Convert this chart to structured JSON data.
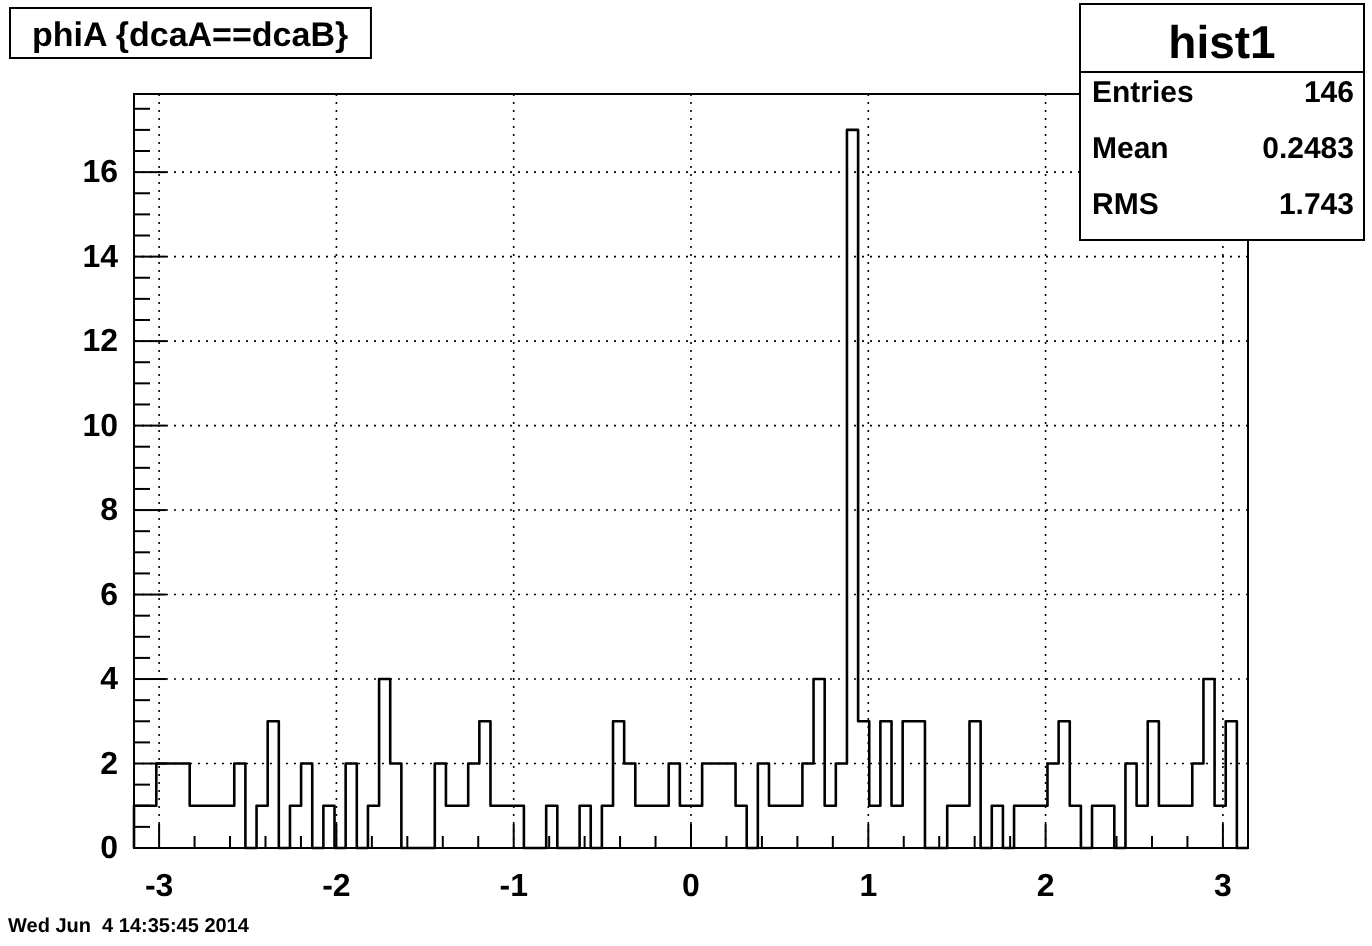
{
  "chart_data": {
    "type": "histogram",
    "title": "phiA {dcaA==dcaB}",
    "bins": [
      -3.1416,
      -3.0788,
      -3.0159,
      -2.9531,
      -2.8903,
      -2.8274,
      -2.7646,
      -2.7018,
      -2.6389,
      -2.5761,
      -2.5133,
      -2.4504,
      -2.3876,
      -2.3248,
      -2.2619,
      -2.1991,
      -2.1363,
      -2.0735,
      -2.0106,
      -1.9478,
      -1.885,
      -1.8221,
      -1.7593,
      -1.6965,
      -1.6336,
      -1.5708,
      -1.508,
      -1.4451,
      -1.3823,
      -1.3195,
      -1.2566,
      -1.1938,
      -1.131,
      -1.0681,
      -1.0053,
      -0.9425,
      -0.8796,
      -0.8168,
      -0.754,
      -0.6912,
      -0.6283,
      -0.5655,
      -0.5027,
      -0.4398,
      -0.377,
      -0.3142,
      -0.2513,
      -0.1885,
      -0.1257,
      -0.0628,
      0,
      0.0628,
      0.1257,
      0.1885,
      0.2513,
      0.3142,
      0.377,
      0.4398,
      0.5027,
      0.5655,
      0.6283,
      0.6912,
      0.754,
      0.8168,
      0.8796,
      0.9425,
      1.0053,
      1.0681,
      1.131,
      1.1938,
      1.2566,
      1.3195,
      1.3823,
      1.4451,
      1.508,
      1.5708,
      1.6336,
      1.6965,
      1.7593,
      1.8221,
      1.885,
      1.9478,
      2.0106,
      2.0735,
      2.1363,
      2.1991,
      2.2619,
      2.3248,
      2.3876,
      2.4504,
      2.5133,
      2.5761,
      2.6389,
      2.7018,
      2.7646,
      2.8274,
      2.8903,
      2.9531,
      3.0159,
      3.0788,
      3.1416
    ],
    "values": [
      1,
      1,
      2,
      2,
      2,
      1,
      1,
      1,
      1,
      2,
      0,
      1,
      3,
      0,
      1,
      2,
      0,
      1,
      0,
      2,
      0,
      1,
      4,
      2,
      0,
      0,
      0,
      2,
      1,
      1,
      2,
      3,
      1,
      1,
      1,
      0,
      0,
      1,
      0,
      0,
      1,
      0,
      1,
      3,
      2,
      1,
      1,
      1,
      2,
      1,
      1,
      2,
      2,
      2,
      1,
      0,
      2,
      1,
      1,
      1,
      2,
      4,
      1,
      2,
      17,
      3,
      1,
      3,
      1,
      3,
      3,
      0,
      0,
      1,
      1,
      3,
      0,
      1,
      0,
      1,
      1,
      1,
      2,
      3,
      1,
      0,
      1,
      1,
      0,
      2,
      1,
      3,
      1,
      1,
      1,
      2,
      4,
      1,
      3,
      0
    ],
    "color": "#000000",
    "xlim": [
      -3.1416,
      3.1416
    ],
    "xticks": [
      -3,
      {
        "value": -2.8,
        "label": null
      },
      {
        "value": -2.6,
        "label": null
      },
      {
        "value": -2.4,
        "label": null
      },
      {
        "value": -2.2,
        "label": null
      },
      -2,
      {
        "value": -1.8,
        "label": null
      },
      {
        "value": -1.6,
        "label": null
      },
      {
        "value": -1.4,
        "label": null
      },
      {
        "value": -1.2,
        "label": null
      },
      -1,
      {
        "value": -0.8,
        "label": null
      },
      {
        "value": -0.6,
        "label": null
      },
      {
        "value": -0.4,
        "label": null
      },
      {
        "value": -0.2,
        "label": null
      },
      0,
      {
        "value": 0.2,
        "label": null
      },
      {
        "value": 0.4,
        "label": null
      },
      {
        "value": 0.6,
        "label": null
      },
      {
        "value": 0.8,
        "label": null
      },
      1,
      {
        "value": 1.2,
        "label": null
      },
      {
        "value": 1.4,
        "label": null
      },
      {
        "value": 1.6,
        "label": null
      },
      {
        "value": 1.8,
        "label": null
      },
      2,
      {
        "value": 2.2,
        "label": null
      },
      {
        "value": 2.4,
        "label": null
      },
      {
        "value": 2.6,
        "label": null
      },
      {
        "value": 2.8,
        "label": null
      },
      3
    ],
    "ylim": [
      0,
      17.85
    ],
    "yticks": [
      0,
      {
        "value": 0.5,
        "label": null
      },
      {
        "value": 1,
        "label": null
      },
      {
        "value": 1.5,
        "label": null
      },
      2,
      {
        "value": 2.5,
        "label": null
      },
      {
        "value": 3,
        "label": null
      },
      {
        "value": 3.5,
        "label": null
      },
      4,
      {
        "value": 4.5,
        "label": null
      },
      {
        "value": 5,
        "label": null
      },
      {
        "value": 5.5,
        "label": null
      },
      6,
      {
        "value": 6.5,
        "label": null
      },
      {
        "value": 7,
        "label": null
      },
      {
        "value": 7.5,
        "label": null
      },
      8,
      {
        "value": 8.5,
        "label": null
      },
      {
        "value": 9,
        "label": null
      },
      {
        "value": 9.5,
        "label": null
      },
      10,
      {
        "value": 10.5,
        "label": null
      },
      {
        "value": 11,
        "label": null
      },
      {
        "value": 11.5,
        "label": null
      },
      12,
      {
        "value": 12.5,
        "label": null
      },
      {
        "value": 13,
        "label": null
      },
      {
        "value": 13.5,
        "label": null
      },
      14,
      {
        "value": 14.5,
        "label": null
      },
      {
        "value": 15,
        "label": null
      },
      {
        "value": 15.5,
        "label": null
      },
      16,
      {
        "value": 16.5,
        "label": null
      },
      {
        "value": 17,
        "label": null
      },
      {
        "value": 17.5,
        "label": null
      }
    ],
    "grid": true,
    "annotations": [
      "hist1",
      "Entries",
      "146",
      "Mean",
      "0.2483",
      "RMS",
      "1.743",
      "Wed Jun  4 14:35:45 2014"
    ]
  }
}
